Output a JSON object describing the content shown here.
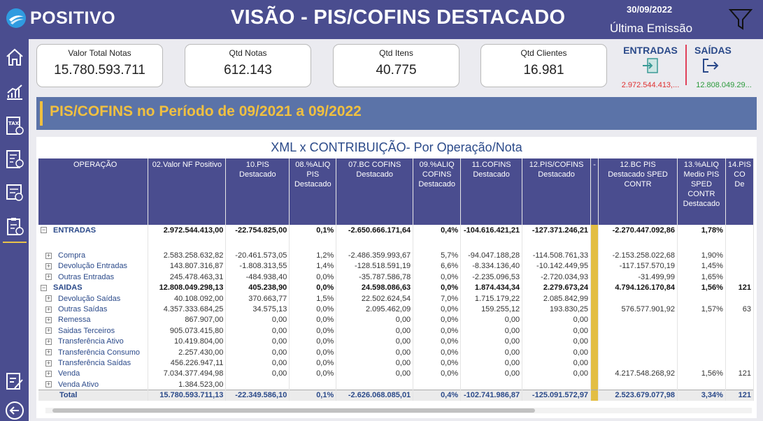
{
  "header": {
    "brand": "POSITIVO",
    "title": "VISÃO - PIS/COFINS DESTACADO",
    "date": "30/09/2022",
    "last_emission_label": "Última Emissão"
  },
  "sidebar": {
    "items": [
      "home-icon",
      "analytics-icon",
      "tax-icon",
      "calculator-doc-icon",
      "report-settings-icon",
      "clipboard-settings-icon",
      "edit-report-icon",
      "back-icon"
    ]
  },
  "cards": [
    {
      "label": "Valor Total Notas",
      "value": "15.780.593.711"
    },
    {
      "label": "Qtd Notas",
      "value": "612.143"
    },
    {
      "label": "Qtd Itens",
      "value": "40.775"
    },
    {
      "label": "Qtd Clientes",
      "value": "16.981"
    }
  ],
  "entradas": {
    "label": "ENTRADAS",
    "value": "2.972.544.413,...",
    "color": "#e03030"
  },
  "saidas": {
    "label": "SAÍDAS",
    "value": "12.808.049.29...",
    "color": "#2a9a3a"
  },
  "banner": "PIS/COFINS no Período de 09/2021 a 09/2022",
  "table_title": "XML x CONTRIBUIÇÃO- Por Operação/Nota",
  "table": {
    "headers": [
      "OPERAÇÃO",
      "02.Valor NF Positivo",
      "10.PIS Destacado",
      "08.%ALIQ PIS Destacado",
      "07.BC COFINS Destacado",
      "09.%ALIQ COFINS Destacado",
      "11.COFINS Destacado",
      "12.PIS/COFINS Destacado",
      "-",
      "12.BC PIS Destacado SPED CONTR",
      "13.%ALIQ Medio PIS SPED CONTR Destacado",
      "14.PIS CO De"
    ],
    "rows": [
      {
        "type": "grp",
        "sign": "−",
        "op": "ENTRADAS",
        "cells": [
          "2.972.544.413,00",
          "-22.754.825,00",
          "0,1%",
          "-2.650.666.171,64",
          "0,4%",
          "-104.616.421,21",
          "-127.371.246,21",
          "",
          "-2.270.447.092,86",
          "1,78%",
          ""
        ]
      },
      {
        "type": "spacer",
        "op": "",
        "cells": [
          "",
          "",
          "",
          "",
          "",
          "",
          "",
          "",
          "",
          "",
          ""
        ]
      },
      {
        "type": "sub",
        "sign": "+",
        "op": "Compra",
        "cells": [
          "2.583.258.632,82",
          "-20.461.573,05",
          "1,2%",
          "-2.486.359.993,67",
          "5,7%",
          "-94.047.188,28",
          "-114.508.761,33",
          "",
          "-2.153.258.022,68",
          "1,90%",
          ""
        ]
      },
      {
        "type": "sub",
        "sign": "+",
        "op": "Devolução Entradas",
        "cells": [
          "143.807.316,87",
          "-1.808.313,55",
          "1,4%",
          "-128.518.591,19",
          "6,6%",
          "-8.334.136,40",
          "-10.142.449,95",
          "",
          "-117.157.570,19",
          "1,45%",
          ""
        ]
      },
      {
        "type": "sub",
        "sign": "+",
        "op": "Outras Entradas",
        "cells": [
          "245.478.463,31",
          "-484.938,40",
          "0,0%",
          "-35.787.586,78",
          "0,0%",
          "-2.235.096,53",
          "-2.720.034,93",
          "",
          "-31.499,99",
          "1,65%",
          ""
        ]
      },
      {
        "type": "grp",
        "sign": "−",
        "op": "SAIDAS",
        "cells": [
          "12.808.049.298,13",
          "405.238,90",
          "0,0%",
          "24.598.086,63",
          "0,0%",
          "1.874.434,34",
          "2.279.673,24",
          "",
          "4.794.126.170,84",
          "1,56%",
          "121"
        ]
      },
      {
        "type": "sub",
        "sign": "+",
        "op": "Devolução Saídas",
        "cells": [
          "40.108.092,00",
          "370.663,77",
          "1,5%",
          "22.502.624,54",
          "7,0%",
          "1.715.179,22",
          "2.085.842,99",
          "",
          "",
          "",
          ""
        ]
      },
      {
        "type": "sub",
        "sign": "+",
        "op": "Outras Saídas",
        "cells": [
          "4.357.333.684,25",
          "34.575,13",
          "0,0%",
          "2.095.462,09",
          "0,0%",
          "159.255,12",
          "193.830,25",
          "",
          "576.577.901,92",
          "1,57%",
          "63"
        ]
      },
      {
        "type": "sub",
        "sign": "+",
        "op": "Remessa",
        "cells": [
          "867.907,00",
          "0,00",
          "0,0%",
          "0,00",
          "0,0%",
          "0,00",
          "0,00",
          "",
          "",
          "",
          ""
        ]
      },
      {
        "type": "sub",
        "sign": "+",
        "op": "Saidas Terceiros",
        "cells": [
          "905.073.415,80",
          "0,00",
          "0,0%",
          "0,00",
          "0,0%",
          "0,00",
          "0,00",
          "",
          "",
          "",
          ""
        ]
      },
      {
        "type": "sub",
        "sign": "+",
        "op": "Transferência Ativo",
        "cells": [
          "10.419.804,00",
          "0,00",
          "0,0%",
          "0,00",
          "0,0%",
          "0,00",
          "0,00",
          "",
          "",
          "",
          ""
        ]
      },
      {
        "type": "sub",
        "sign": "+",
        "op": "Transferência Consumo",
        "cells": [
          "2.257.430,00",
          "0,00",
          "0,0%",
          "0,00",
          "0,0%",
          "0,00",
          "0,00",
          "",
          "",
          "",
          ""
        ]
      },
      {
        "type": "sub",
        "sign": "+",
        "op": "Transferência Saídas",
        "cells": [
          "456.226.947,11",
          "0,00",
          "0,0%",
          "0,00",
          "0,0%",
          "0,00",
          "0,00",
          "",
          "",
          "",
          ""
        ]
      },
      {
        "type": "sub",
        "sign": "+",
        "op": "Venda",
        "cells": [
          "7.034.377.494,98",
          "0,00",
          "0,0%",
          "0,00",
          "0,0%",
          "0,00",
          "0,00",
          "",
          "4.217.548.268,92",
          "1,56%",
          "121"
        ]
      },
      {
        "type": "sub",
        "sign": "+",
        "op": "Venda Ativo",
        "cells": [
          "1.384.523,00",
          "",
          "",
          "",
          "",
          "",
          "",
          "",
          "",
          "",
          ""
        ]
      },
      {
        "type": "total",
        "op": "Total",
        "cells": [
          "15.780.593.711,13",
          "-22.349.586,10",
          "0,1%",
          "-2.626.068.085,01",
          "0,4%",
          "-102.741.986,87",
          "-125.091.572,97",
          "",
          "2.523.679.077,98",
          "3,34%",
          "121"
        ]
      }
    ]
  }
}
